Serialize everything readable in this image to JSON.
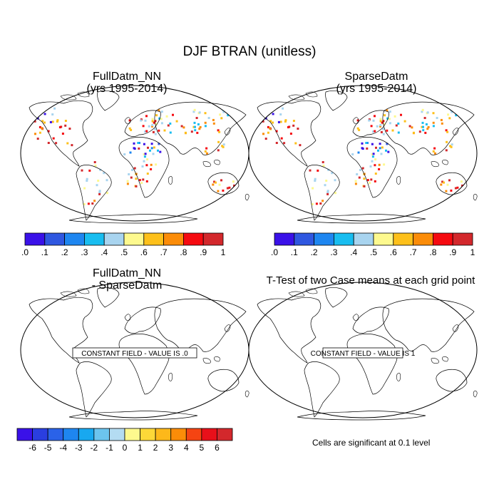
{
  "figure": {
    "title": "DJF BTRAN (unitless)"
  },
  "panels": [
    {
      "id": "fulldatm",
      "title_line1": "FullDatm_NN",
      "title_line2": "(yrs 1995-2014)",
      "seed": 7
    },
    {
      "id": "sparsedatm",
      "title_line1": "SparseDatm",
      "title_line2": "(yrs 1995-2014)",
      "seed": 7
    },
    {
      "id": "difference",
      "title_line1": "FullDatm_NN",
      "title_line2": "- SparseDatm",
      "constant_label": "CONSTANT FIELD - VALUE IS .0"
    },
    {
      "id": "ttest",
      "title_line1": "T-Test of two Case means at each grid point",
      "title_line2": "",
      "constant_label": "CONSTANT FIELD - VALUE IS 1"
    }
  ],
  "colorbar_btran": {
    "labels": [
      ".0",
      ".1",
      ".2",
      ".3",
      ".4",
      ".5",
      ".6",
      ".7",
      ".8",
      ".9",
      "1"
    ],
    "colors": [
      "#3a11e8",
      "#2f57e0",
      "#1e86f0",
      "#18bdf0",
      "#a8d4ef",
      "#fdf98e",
      "#fdc01a",
      "#fb8c08",
      "#f50a10",
      "#d3282c"
    ]
  },
  "colorbar_diff": {
    "labels": [
      "-6",
      "-5",
      "-4",
      "-3",
      "-2",
      "-1",
      "0",
      "1",
      "2",
      "3",
      "4",
      "5",
      "6"
    ],
    "colors": [
      "#3a11e8",
      "#2a3ee0",
      "#2a62e8",
      "#1e86f0",
      "#18a8f0",
      "#6cc4ee",
      "#b4dcf2",
      "#fdf98e",
      "#fdd838",
      "#fdb81a",
      "#fb8c08",
      "#f54412",
      "#e8101a",
      "#d3282c"
    ]
  },
  "significance_note": "Cells are significant at 0.1 level"
}
